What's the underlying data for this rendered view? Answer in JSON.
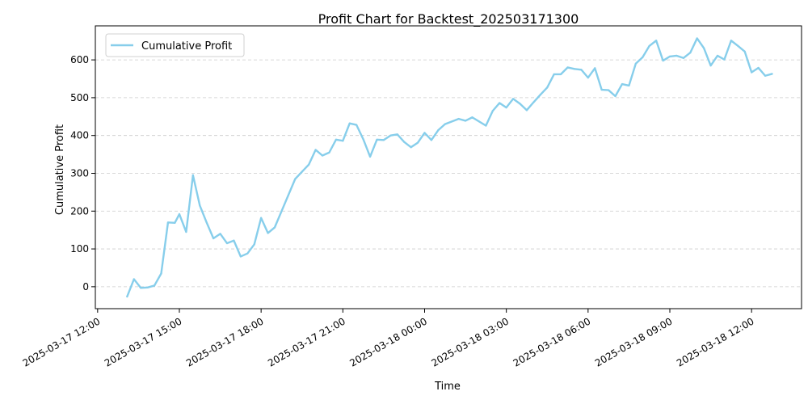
{
  "chart_data": {
    "type": "line",
    "title": "Profit Chart for Backtest_202503171300",
    "xlabel": "Time",
    "ylabel": "Cumulative Profit",
    "x_type": "datetime",
    "xlim": [
      "2025-03-17 11:55",
      "2025-03-18 13:50"
    ],
    "ylim": [
      -58,
      690
    ],
    "yticks": [
      0,
      100,
      200,
      300,
      400,
      500,
      600
    ],
    "xticks": [
      "2025-03-17 12:00",
      "2025-03-17 15:00",
      "2025-03-17 18:00",
      "2025-03-17 21:00",
      "2025-03-18 00:00",
      "2025-03-18 03:00",
      "2025-03-18 06:00",
      "2025-03-18 09:00",
      "2025-03-18 12:00"
    ],
    "xtick_labels": [
      "2025-03-17 12:00",
      "2025-03-17 15:00",
      "2025-03-17 18:00",
      "2025-03-17 21:00",
      "2025-03-18 00:00",
      "2025-03-18 03:00",
      "2025-03-18 06:00",
      "2025-03-18 09:00",
      "2025-03-18 12:00"
    ],
    "grid": "y-dashed",
    "legend": "upper-left",
    "colors": {
      "line": "#87CEEB",
      "grid": "#cccccc"
    },
    "series": [
      {
        "name": "Cumulative Profit",
        "x": [
          "2025-03-17 13:05",
          "2025-03-17 13:20",
          "2025-03-17 13:35",
          "2025-03-17 13:50",
          "2025-03-17 14:05",
          "2025-03-17 14:20",
          "2025-03-17 14:35",
          "2025-03-17 14:50",
          "2025-03-17 15:00",
          "2025-03-17 15:15",
          "2025-03-17 15:30",
          "2025-03-17 15:45",
          "2025-03-17 16:00",
          "2025-03-17 16:15",
          "2025-03-17 16:30",
          "2025-03-17 16:45",
          "2025-03-17 17:00",
          "2025-03-17 17:15",
          "2025-03-17 17:30",
          "2025-03-17 17:45",
          "2025-03-17 18:00",
          "2025-03-17 18:15",
          "2025-03-17 18:30",
          "2025-03-17 19:15",
          "2025-03-17 19:30",
          "2025-03-17 19:45",
          "2025-03-17 20:00",
          "2025-03-17 20:15",
          "2025-03-17 20:30",
          "2025-03-17 20:45",
          "2025-03-17 21:00",
          "2025-03-17 21:15",
          "2025-03-17 21:30",
          "2025-03-17 21:45",
          "2025-03-17 22:00",
          "2025-03-17 22:15",
          "2025-03-17 22:30",
          "2025-03-17 22:45",
          "2025-03-17 23:00",
          "2025-03-17 23:15",
          "2025-03-17 23:30",
          "2025-03-17 23:45",
          "2025-03-18 00:00",
          "2025-03-18 00:15",
          "2025-03-18 00:30",
          "2025-03-18 00:45",
          "2025-03-18 01:00",
          "2025-03-18 01:15",
          "2025-03-18 01:30",
          "2025-03-18 01:45",
          "2025-03-18 02:00",
          "2025-03-18 02:15",
          "2025-03-18 02:30",
          "2025-03-18 02:45",
          "2025-03-18 03:00",
          "2025-03-18 03:15",
          "2025-03-18 03:30",
          "2025-03-18 03:45",
          "2025-03-18 04:00",
          "2025-03-18 04:15",
          "2025-03-18 04:30",
          "2025-03-18 04:45",
          "2025-03-18 05:00",
          "2025-03-18 05:15",
          "2025-03-18 05:30",
          "2025-03-18 05:45",
          "2025-03-18 06:00",
          "2025-03-18 06:15",
          "2025-03-18 06:30",
          "2025-03-18 06:45",
          "2025-03-18 07:00",
          "2025-03-18 07:15",
          "2025-03-18 07:30",
          "2025-03-18 07:45",
          "2025-03-18 08:00",
          "2025-03-18 08:15",
          "2025-03-18 08:30",
          "2025-03-18 08:45",
          "2025-03-18 09:00",
          "2025-03-18 09:15",
          "2025-03-18 09:30",
          "2025-03-18 09:45",
          "2025-03-18 10:00",
          "2025-03-18 10:15",
          "2025-03-18 10:30",
          "2025-03-18 10:45",
          "2025-03-18 11:00",
          "2025-03-18 11:15",
          "2025-03-18 11:30",
          "2025-03-18 11:45",
          "2025-03-18 12:00",
          "2025-03-18 12:15",
          "2025-03-18 12:30",
          "2025-03-18 12:45"
        ],
        "values": [
          -26,
          20,
          -3,
          -2,
          3,
          35,
          170,
          169,
          192,
          145,
          295,
          215,
          170,
          128,
          140,
          115,
          122,
          80,
          88,
          112,
          182,
          142,
          157,
          285,
          304,
          323,
          362,
          347,
          355,
          389,
          386,
          432,
          428,
          390,
          344,
          389,
          388,
          400,
          403,
          383,
          369,
          381,
          407,
          388,
          414,
          430,
          437,
          444,
          439,
          448,
          437,
          426,
          465,
          486,
          474,
          497,
          484,
          467,
          488,
          508,
          527,
          562,
          562,
          580,
          576,
          574,
          553,
          578,
          521,
          520,
          504,
          536,
          532,
          590,
          607,
          637,
          651,
          598,
          609,
          611,
          605,
          619,
          657,
          631,
          585,
          611,
          601,
          651,
          637,
          622,
          567,
          579,
          558,
          563
        ]
      }
    ]
  }
}
